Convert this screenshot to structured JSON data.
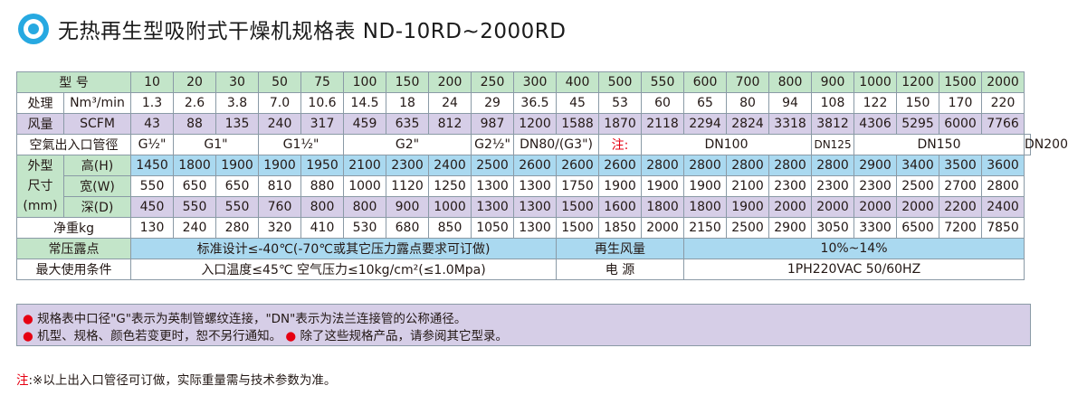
{
  "title": "无热再生型吸附式干燥机规格表 ND-10RD~2000RD",
  "table": {
    "model_label": "型  号",
    "models": [
      "10",
      "20",
      "30",
      "50",
      "75",
      "100",
      "150",
      "200",
      "250",
      "300",
      "400",
      "500",
      "550",
      "600",
      "700",
      "800",
      "900",
      "1000",
      "1200",
      "1500",
      "2000"
    ],
    "capacity_label": "处理",
    "capacity_label2": "风量",
    "unit_nm3": "Nm³/min",
    "unit_scfm": "SCFM",
    "nm3": [
      "1.3",
      "2.6",
      "3.8",
      "7.0",
      "10.6",
      "14.5",
      "18",
      "24",
      "29",
      "36.5",
      "45",
      "53",
      "60",
      "65",
      "80",
      "94",
      "108",
      "122",
      "150",
      "170",
      "220"
    ],
    "scfm": [
      "43",
      "88",
      "135",
      "240",
      "317",
      "459",
      "635",
      "812",
      "987",
      "1200",
      "1588",
      "1870",
      "2118",
      "2294",
      "2824",
      "3318",
      "3812",
      "4306",
      "5295",
      "6000",
      "7766"
    ],
    "pipe_label": "空氣出入口管徑",
    "pipe": {
      "g12": "G½\"",
      "g1": "G1\"",
      "g112": "G1½\"",
      "g2": "G2\"",
      "g212": "G2½\"",
      "dn80": "DN80/(G3\")",
      "note_mark": "注:",
      "dn100": "DN100",
      "dn125": "DN125",
      "dn150": "DN150",
      "dn200": "DN200"
    },
    "dim_label1": "外型",
    "dim_label2": "尺寸",
    "dim_label3": "(mm)",
    "height_label": "高(H)",
    "width_label": "宽(W)",
    "depth_label": "深(D)",
    "height": [
      "1450",
      "1800",
      "1900",
      "1900",
      "1950",
      "2100",
      "2300",
      "2400",
      "2500",
      "2600",
      "2600",
      "2600",
      "2800",
      "2800",
      "2800",
      "2800",
      "2800",
      "2900",
      "3400",
      "3500",
      "3600"
    ],
    "width": [
      "550",
      "650",
      "650",
      "810",
      "880",
      "1000",
      "1120",
      "1250",
      "1300",
      "1300",
      "1750",
      "1900",
      "1900",
      "1900",
      "2100",
      "2300",
      "2300",
      "2300",
      "2500",
      "2700",
      "2800"
    ],
    "depth": [
      "450",
      "550",
      "550",
      "760",
      "800",
      "800",
      "900",
      "1000",
      "1300",
      "1300",
      "1500",
      "1600",
      "1800",
      "1800",
      "1900",
      "2000",
      "2000",
      "2000",
      "2000",
      "2200",
      "2400"
    ],
    "weight_label": "净重kg",
    "weight": [
      "130",
      "240",
      "280",
      "320",
      "410",
      "530",
      "680",
      "850",
      "1050",
      "1300",
      "1500",
      "1850",
      "2000",
      "2150",
      "2500",
      "2900",
      "3050",
      "3300",
      "6500",
      "7200",
      "7850"
    ],
    "dewpoint_label": "常压露点",
    "dewpoint_value": "标准设计≤-40℃(-70℃或其它压力露点要求可订做)",
    "purge_label": "再生风量",
    "purge_value": "10%~14%",
    "cond_label": "最大使用条件",
    "cond_value": "入口温度≤45℃  空气压力≤10kg/cm²(≤1.0Mpa)",
    "power_label": "电      源",
    "power_value": "1PH220VAC    50/60HZ"
  },
  "notes": {
    "line1": "规格表中口径\"G\"表示为英制管螺纹连接，\"DN\"表示为法兰连接管的公称通径。",
    "line2a": "机型、规格、颜色若变更时，恕不另行通知。",
    "line2b": "除了这些规格产品，请参阅其它型录。",
    "bullet": "●"
  },
  "footer": {
    "mark": "注",
    "text": ":※以上出入口管径可订做，实际重量需与技术参数为准。"
  },
  "colors": {
    "green": "#c3e5c9",
    "purple": "#d6cee7",
    "blue": "#aad9f0",
    "accent": "#27a9e1",
    "red": "#e60012"
  }
}
